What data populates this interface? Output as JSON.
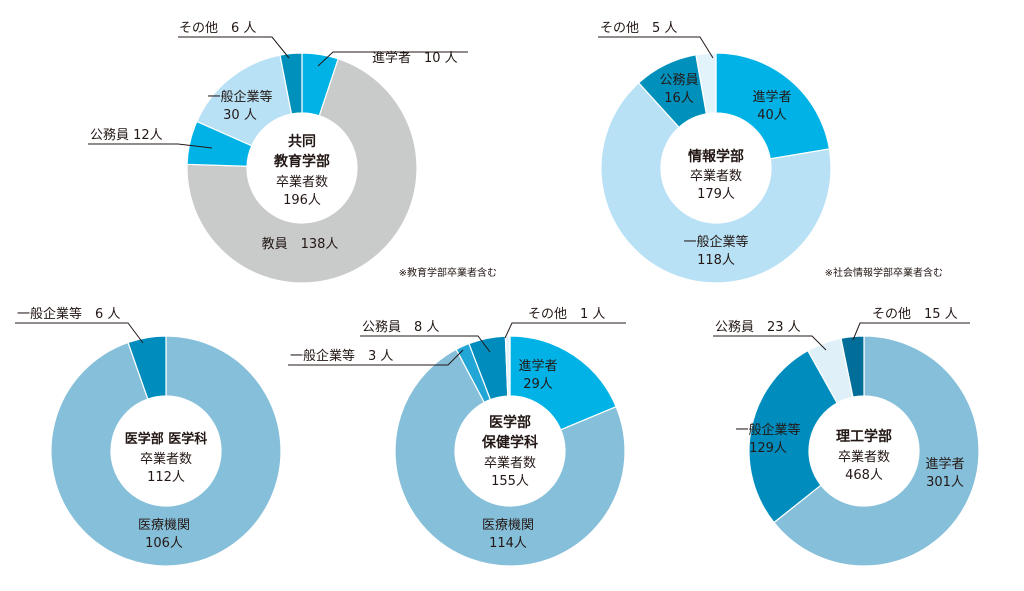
{
  "chart_data": [
    {
      "type": "pie",
      "title": "共同",
      "subtitle": "教育学部",
      "total_label": "卒業者数",
      "total": "196人",
      "note": "※教育学部卒業者含む",
      "slices": [
        {
          "name": "進学者",
          "value": 10,
          "label": "進学者　10 人",
          "color": "#00b2e6"
        },
        {
          "name": "教員",
          "value": 138,
          "label": "教員　138人",
          "color": "#c9caca"
        },
        {
          "name": "公務員",
          "value": 12,
          "label": "公務員 12人",
          "color": "#00b2e6"
        },
        {
          "name": "一般企業等",
          "value": 30,
          "label": "一般企業等",
          "label2": "30 人",
          "color": "#b8e1f5"
        },
        {
          "name": "その他",
          "value": 6,
          "label": "その他　6 人",
          "color": "#0090bc"
        }
      ]
    },
    {
      "type": "pie",
      "title": "情報学部",
      "subtitle": "",
      "total_label": "卒業者数",
      "total": "179人",
      "note": "※社会情報学部卒業者含む",
      "slices": [
        {
          "name": "進学者",
          "value": 40,
          "label": "進学者",
          "label2": "40人",
          "color": "#00b2e6"
        },
        {
          "name": "一般企業等",
          "value": 118,
          "label": "一般企業等",
          "label2": "118人",
          "color": "#b8e1f5"
        },
        {
          "name": "公務員",
          "value": 16,
          "label": "公務員",
          "label2": "16人",
          "color": "#0090bc"
        },
        {
          "name": "その他",
          "value": 5,
          "label": "その他　5 人",
          "color": "#e3f3fb"
        }
      ]
    },
    {
      "type": "pie",
      "title": "医学部 医学科",
      "subtitle": "",
      "total_label": "卒業者数",
      "total": "112人",
      "note": "",
      "slices": [
        {
          "name": "医療機関",
          "value": 106,
          "label": "医療機関",
          "label2": "106人",
          "color": "#86bfd9"
        },
        {
          "name": "一般企業等",
          "value": 6,
          "label": "一般企業等　6 人",
          "color": "#008dbd"
        }
      ]
    },
    {
      "type": "pie",
      "title": "医学部",
      "subtitle": "保健学科",
      "total_label": "卒業者数",
      "total": "155人",
      "note": "",
      "slices": [
        {
          "name": "進学者",
          "value": 29,
          "label": "進学者",
          "label2": "29人",
          "color": "#00b2e6"
        },
        {
          "name": "医療機関",
          "value": 114,
          "label": "医療機関",
          "label2": "114人",
          "color": "#86bfd9"
        },
        {
          "name": "一般企業等",
          "value": 3,
          "label": "一般企業等　3 人",
          "color": "#22a6d6"
        },
        {
          "name": "公務員",
          "value": 8,
          "label": "公務員　8 人",
          "color": "#008dbd"
        },
        {
          "name": "その他",
          "value": 1,
          "label": "その他　1 人",
          "color": "#e3f3fb"
        }
      ]
    },
    {
      "type": "pie",
      "title": "理工学部",
      "subtitle": "",
      "total_label": "卒業者数",
      "total": "468人",
      "note": "",
      "slices": [
        {
          "name": "進学者",
          "value": 301,
          "label": "進学者",
          "label2": "301人",
          "color": "#86bfd9"
        },
        {
          "name": "一般企業等",
          "value": 129,
          "label": "一般企業等",
          "label2": "129人",
          "color": "#008dbd"
        },
        {
          "name": "公務員",
          "value": 23,
          "label": "公務員　23 人",
          "color": "#dff0f9"
        },
        {
          "name": "その他",
          "value": 15,
          "label": "その他　15 人",
          "color": "#006e98"
        }
      ]
    }
  ]
}
